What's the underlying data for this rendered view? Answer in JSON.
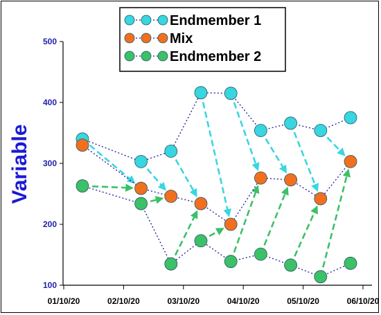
{
  "chart_data": {
    "type": "line",
    "ylabel": "Variable",
    "xlabel": "",
    "ylim": [
      100,
      500
    ],
    "y_ticks": [
      100,
      200,
      300,
      400,
      500
    ],
    "x_ticks": [
      "01/10/20",
      "02/10/20",
      "03/10/20",
      "04/10/20",
      "05/10/20",
      "06/10/20"
    ],
    "x_dates": [
      "01/10/20",
      "01/11/20",
      "01/12/20",
      "01/13/20",
      "01/14/20",
      "01/15/20"
    ],
    "x": [
      "01/10/20 07:30",
      "01/11/20 07:00",
      "01/11/20 19:00",
      "01/12/20 07:00",
      "01/12/20 19:00",
      "01/13/20 07:00",
      "01/13/20 19:00",
      "01/14/20 07:00",
      "01/14/20 19:00"
    ],
    "legend_position": "top-center",
    "series": [
      {
        "name": "Endmember 1",
        "color": "#38d6e0",
        "values": [
          340,
          303,
          320,
          416,
          415,
          354,
          366,
          354,
          375
        ]
      },
      {
        "name": "Mix",
        "color": "#f07020",
        "values": [
          330,
          259,
          246,
          234,
          200,
          276,
          273,
          242,
          303
        ]
      },
      {
        "name": "Endmember 2",
        "color": "#3cc068",
        "values": [
          263,
          234,
          135,
          173,
          139,
          151,
          133,
          114,
          136
        ]
      }
    ],
    "arrows": [
      {
        "series": "Endmember 1",
        "color": "#38d6e0",
        "pairs": [
          [
            0,
            1
          ],
          [
            1,
            2
          ],
          [
            2,
            3
          ],
          [
            3,
            4
          ],
          [
            4,
            5
          ],
          [
            5,
            6
          ],
          [
            6,
            7
          ],
          [
            7,
            8
          ]
        ]
      },
      {
        "series": "Endmember 2",
        "color": "#3cc068",
        "pairs": [
          [
            0,
            1
          ],
          [
            1,
            2
          ],
          [
            2,
            3
          ],
          [
            3,
            4
          ],
          [
            4,
            5
          ],
          [
            5,
            6
          ],
          [
            6,
            7
          ],
          [
            7,
            8
          ]
        ]
      }
    ]
  }
}
